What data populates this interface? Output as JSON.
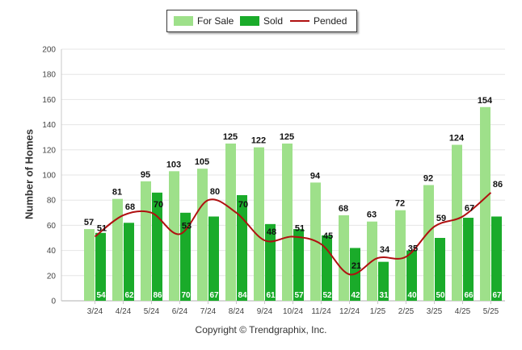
{
  "chart_data": {
    "type": "bar",
    "categories": [
      "3/24",
      "4/24",
      "5/24",
      "6/24",
      "7/24",
      "8/24",
      "9/24",
      "10/24",
      "11/24",
      "12/24",
      "1/25",
      "2/25",
      "3/25",
      "4/25",
      "5/25"
    ],
    "series": [
      {
        "name": "For Sale",
        "type": "bar",
        "color": "#9ee08a",
        "values": [
          57,
          81,
          95,
          103,
          105,
          125,
          122,
          125,
          94,
          68,
          63,
          72,
          92,
          124,
          154
        ]
      },
      {
        "name": "Sold",
        "type": "bar",
        "color": "#1aab2a",
        "values": [
          54,
          62,
          86,
          70,
          67,
          84,
          61,
          57,
          52,
          42,
          31,
          40,
          50,
          66,
          67
        ]
      },
      {
        "name": "Pended",
        "type": "line",
        "color": "#b01010",
        "values": [
          51,
          68,
          70,
          53,
          80,
          70,
          48,
          51,
          45,
          21,
          34,
          35,
          59,
          67,
          86
        ]
      }
    ],
    "ylabel": "Number of Homes",
    "ylim": [
      0,
      200
    ],
    "yticks": [
      0,
      20,
      40,
      60,
      80,
      100,
      120,
      140,
      160,
      180,
      200
    ],
    "grid": true,
    "legend_position": "top-center"
  },
  "footer": {
    "copyright": "Copyright © Trendgraphix, Inc."
  }
}
